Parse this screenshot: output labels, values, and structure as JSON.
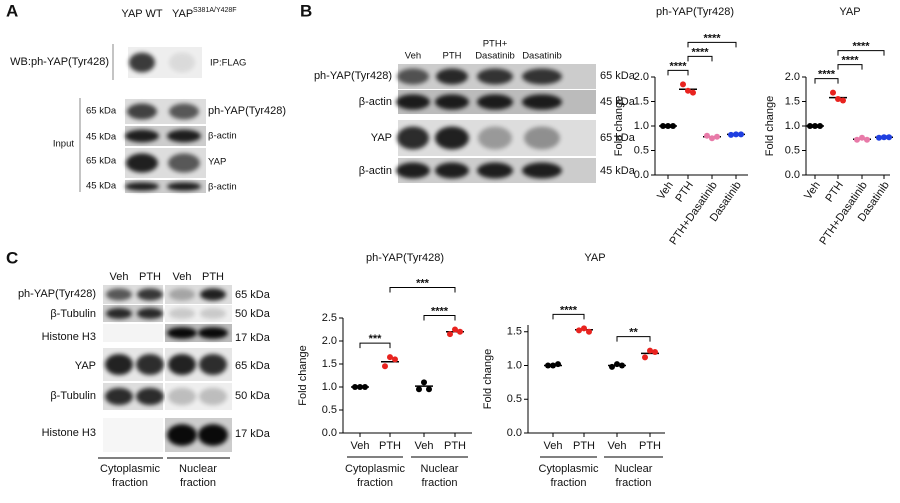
{
  "panels": {
    "a": {
      "letter": "A",
      "lane_1": "YAP WT",
      "lane_2": "YAP",
      "lane_2_sup": "S381A/Y428F",
      "ip_blot_label": "WB:ph-YAP(Tyr428)",
      "ip_label": "IP:FLAG",
      "input_label": "Input",
      "rows": [
        {
          "kda": "65 kDa",
          "protein": "ph-YAP(Tyr428)"
        },
        {
          "kda": "45 kDa",
          "protein": "β-actin"
        },
        {
          "kda": "65 kDa",
          "protein": "YAP"
        },
        {
          "kda": "45 kDa",
          "protein": "β-actin"
        }
      ]
    },
    "b": {
      "letter": "B",
      "lanes": [
        [
          "Veh"
        ],
        [
          "PTH"
        ],
        [
          "PTH+",
          "Dasatinib"
        ],
        [
          "Dasatinib"
        ]
      ],
      "rows": [
        {
          "protein": "ph-YAP(Tyr428)",
          "kda": "65 kDa"
        },
        {
          "protein": "β-actin",
          "kda": "45 kDa"
        },
        {
          "protein": "YAP",
          "kda": "65 kDa"
        },
        {
          "protein": "β-actin",
          "kda": "45 kDa"
        }
      ]
    },
    "c": {
      "letter": "C",
      "lanes": [
        "Veh",
        "PTH",
        "Veh",
        "PTH"
      ],
      "rows": [
        {
          "protein": "ph-YAP(Tyr428)",
          "kda": "65 kDa"
        },
        {
          "protein": "β-Tubulin",
          "kda": "50 kDa"
        },
        {
          "protein": "Histone H3",
          "kda": "17 kDa"
        },
        {
          "protein": "YAP",
          "kda": "65 kDa"
        },
        {
          "protein": "β-Tubulin",
          "kda": "50 kDa"
        },
        {
          "protein": "Histone H3",
          "kda": "17 kDa"
        }
      ],
      "fractions": [
        [
          "Cytoplasmic",
          "fraction"
        ],
        [
          "Nuclear",
          "fraction"
        ]
      ]
    }
  },
  "chart_data": [
    {
      "type": "dotplot",
      "title": "ph-YAP(Tyr428)",
      "y_label": "Fold change",
      "categories": [
        "Veh",
        "PTH",
        "PTH+Dasatinib",
        "Dasatinib"
      ],
      "values": [
        [
          1.0,
          1.0,
          1.0
        ],
        [
          1.85,
          1.72,
          1.68
        ],
        [
          0.8,
          0.75,
          0.78
        ],
        [
          0.82,
          0.83,
          0.83
        ]
      ],
      "means": [
        1.0,
        1.75,
        0.78,
        0.83
      ],
      "colors": [
        "#000000",
        "#e8231f",
        "#e87aa8",
        "#1f3fe0"
      ],
      "ylim": [
        0,
        2
      ],
      "yticks": [
        {
          "value": 0,
          "label": "0.0"
        },
        0.5,
        {
          "value": 1,
          "label": "1.0"
        },
        1.5,
        {
          "value": 2,
          "label": "2.0"
        }
      ],
      "comparisons": [
        {
          "label": "****",
          "pair": [
            0,
            1
          ]
        },
        {
          "label": "****",
          "pair": [
            1,
            2
          ]
        },
        {
          "label": "****",
          "pair": [
            1,
            3
          ]
        }
      ]
    },
    {
      "type": "dotplot",
      "title": "YAP",
      "y_label": "Fold change",
      "categories": [
        "Veh",
        "PTH",
        "PTH+Dasatinib",
        "Dasatinib"
      ],
      "values": [
        [
          1.0,
          1.0,
          1.0
        ],
        [
          1.68,
          1.55,
          1.52
        ],
        [
          0.72,
          0.76,
          0.72
        ],
        [
          0.76,
          0.77,
          0.77
        ]
      ],
      "means": [
        1.0,
        1.58,
        0.73,
        0.77
      ],
      "colors": [
        "#000000",
        "#e8231f",
        "#e87aa8",
        "#1f3fe0"
      ],
      "ylim": [
        0,
        2
      ],
      "yticks": [
        {
          "value": 0,
          "label": "0.0"
        },
        0.5,
        {
          "value": 1,
          "label": "1.0"
        },
        1.5,
        {
          "value": 2,
          "label": "2.0"
        }
      ],
      "comparisons": [
        {
          "label": "****",
          "pair": [
            0,
            1
          ]
        },
        {
          "label": "****",
          "pair": [
            1,
            2
          ]
        },
        {
          "label": "****",
          "pair": [
            1,
            3
          ]
        }
      ]
    },
    {
      "type": "dotplot",
      "title": "ph-YAP(Tyr428)",
      "y_label": "Fold change",
      "categories": [
        "Veh",
        "PTH",
        "Veh",
        "PTH"
      ],
      "values": [
        [
          1.0,
          1.0,
          1.0
        ],
        [
          1.45,
          1.65,
          1.6
        ],
        [
          0.95,
          1.1,
          0.95
        ],
        [
          2.15,
          2.25,
          2.2
        ]
      ],
      "means": [
        1.0,
        1.55,
        1.02,
        2.2
      ],
      "colors": [
        "#000000",
        "#e8231f",
        "#000000",
        "#e8231f"
      ],
      "ylim": [
        0,
        2.5
      ],
      "yticks": [
        {
          "value": 0,
          "label": "0.0"
        },
        0.5,
        {
          "value": 1,
          "label": "1.0"
        },
        1.5,
        {
          "value": 2,
          "label": "2.0"
        },
        2.5
      ],
      "groups": [
        {
          "label": [
            "Cytoplasmic",
            "fraction"
          ],
          "span": [
            0,
            1
          ]
        },
        {
          "label": [
            "Nuclear",
            "fraction"
          ],
          "span": [
            2,
            3
          ]
        }
      ],
      "comparisons": [
        {
          "label": "***",
          "pair": [
            0,
            1
          ]
        },
        {
          "label": "****",
          "pair": [
            2,
            3
          ]
        },
        {
          "label": "***",
          "pair": [
            1,
            3
          ]
        }
      ]
    },
    {
      "type": "dotplot",
      "title": "YAP",
      "y_label": "Fold change",
      "categories": [
        "Veh",
        "PTH",
        "Veh",
        "PTH"
      ],
      "values": [
        [
          1.0,
          1.0,
          1.02
        ],
        [
          1.52,
          1.55,
          1.5
        ],
        [
          0.98,
          1.02,
          1.0
        ],
        [
          1.12,
          1.22,
          1.2
        ]
      ],
      "means": [
        1.0,
        1.53,
        1.0,
        1.18
      ],
      "colors": [
        "#000000",
        "#e8231f",
        "#000000",
        "#e8231f"
      ],
      "ylim": [
        0,
        1.6
      ],
      "yticks": [
        {
          "value": 0,
          "label": "0.0"
        },
        0.5,
        {
          "value": 1,
          "label": "1.0"
        },
        1.5
      ],
      "groups": [
        {
          "label": [
            "Cytoplasmic",
            "fraction"
          ],
          "span": [
            0,
            1
          ]
        },
        {
          "label": [
            "Nuclear",
            "fraction"
          ],
          "span": [
            2,
            3
          ]
        }
      ],
      "comparisons": [
        {
          "label": "****",
          "pair": [
            0,
            1
          ]
        },
        {
          "label": "**",
          "pair": [
            2,
            3
          ]
        }
      ]
    }
  ]
}
